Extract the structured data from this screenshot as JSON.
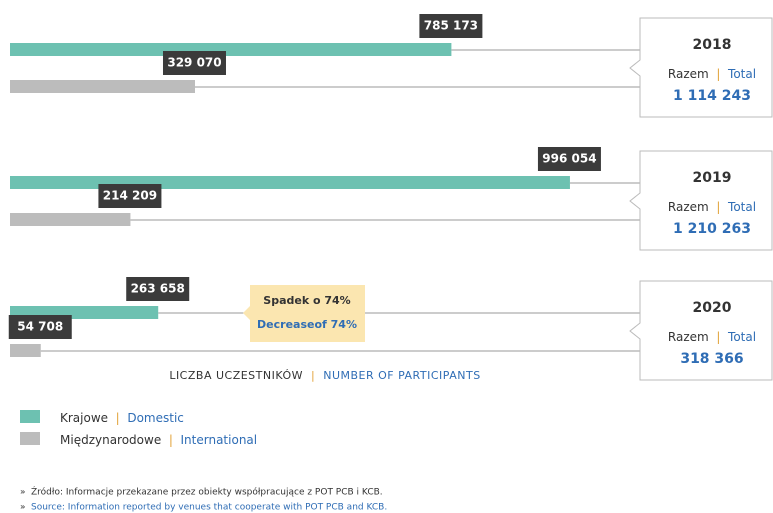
{
  "chart_data": {
    "type": "bar",
    "categories": [
      "2018",
      "2019",
      "2020"
    ],
    "separator": "|",
    "series": [
      {
        "name_pl": "Krajowe",
        "name_en": "Domestic",
        "color": "#6dc1b1",
        "values": [
          785173,
          996054,
          263658
        ],
        "value_labels": [
          "785 173",
          "996 054",
          "263 658"
        ]
      },
      {
        "name_pl": "Międzynarodowe",
        "name_en": "International",
        "color": "#bcbcbc",
        "values": [
          329070,
          214209,
          54708
        ],
        "value_labels": [
          "329 070",
          "214 209",
          "54 708"
        ]
      }
    ],
    "totals": {
      "label_pl": "Razem",
      "label_en": "Total",
      "values": [
        1114243,
        1210263,
        318366
      ],
      "value_labels": [
        "1 114 243",
        "1 210 263",
        "318 366"
      ]
    },
    "annotation": {
      "pl": "Spadek o 74%",
      "en": "Decreaseof 74%"
    },
    "axis_label": {
      "pl": "LICZBA UCZESTNIKÓW",
      "en": "NUMBER OF PARTICIPANTS"
    },
    "source": {
      "bullet": "»",
      "pl": "Źródło: Informacje przekazane przez obiekty współpracujące z POT PCB i KCB.",
      "en": "Source: Information reported by venues that cooperate with POT PCB and KCB."
    }
  }
}
